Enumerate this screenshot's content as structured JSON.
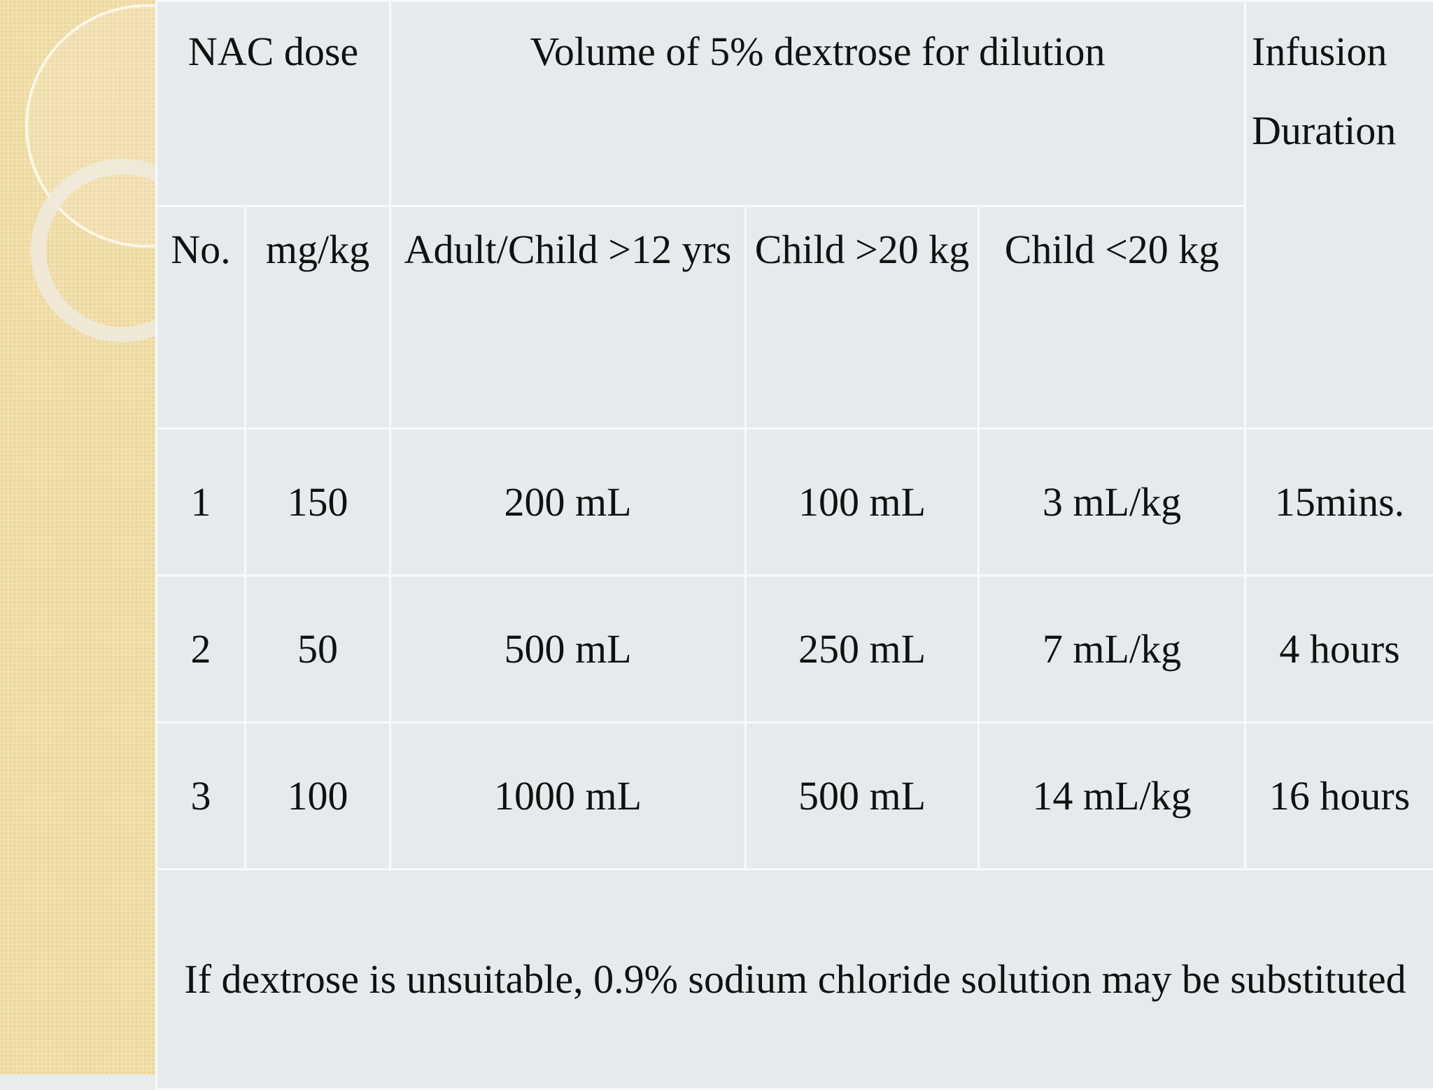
{
  "table": {
    "header": [
      [
        "NAC dose",
        "Volume of 5% dextrose for dilution",
        "Infusion Duration"
      ],
      [
        "No.",
        "mg/kg",
        "Adult/Child >12 yrs",
        "Child >20 kg",
        "Child <20 kg"
      ]
    ],
    "rows": [
      [
        "1",
        "150",
        "200 mL",
        "100 mL",
        "3 mL/kg",
        "15mins."
      ],
      [
        "2",
        "50",
        "500 mL",
        "250 mL",
        "7 mL/kg",
        "4 hours"
      ],
      [
        "3",
        "100",
        "1000 mL",
        "500 mL",
        "14 mL/kg",
        "16 hours"
      ]
    ],
    "note": "If  dextrose is unsuitable, 0.9% sodium chloride solution may be substituted"
  }
}
